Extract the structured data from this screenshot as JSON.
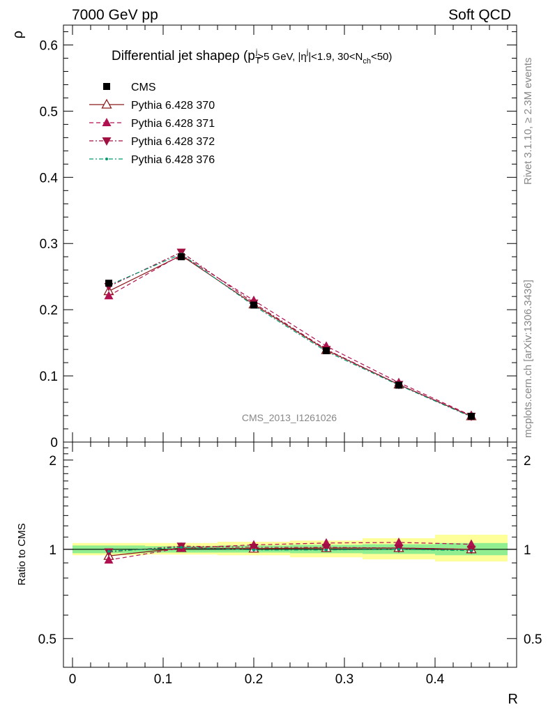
{
  "header": {
    "left": "7000 GeV pp",
    "right": "Soft QCD"
  },
  "side_labels": {
    "rivet": "Rivet 3.1.10, ≥ 2.3M events",
    "mcplots": "mcplots.cern.ch [arXiv:1306.3436]"
  },
  "watermark": "CMS_2013_I1261026",
  "colors": {
    "cms": "#000000",
    "p370": "#8b1a1a",
    "p371": "#b0104f",
    "p372": "#a01040",
    "p376": "#009a6e",
    "band_inner": "#90ee90",
    "band_outer": "#ffff99"
  },
  "chart_data": [
    {
      "type": "line",
      "title": "Differential jet shapeρ (p_T^j>5 GeV, |η^j|<1.9, 30<N_ch<50)",
      "title_parts": {
        "main": "Differential jet shapeρ (p",
        "sub1": "T",
        "sup1": "j",
        "mid1": ">5 GeV, |η",
        "sup2": "j",
        "mid2": "|<1.9, 30<N",
        "sub2": "ch",
        "end": "<50)"
      },
      "ylabel": "ρ",
      "xlim": [
        -0.01,
        0.49
      ],
      "ylim": [
        0,
        0.63
      ],
      "yticks": [
        0,
        0.1,
        0.2,
        0.3,
        0.4,
        0.5,
        0.6
      ],
      "ytick_labels": [
        "0",
        "0.1",
        "0.2",
        "0.3",
        "0.4",
        "0.5",
        "0.6"
      ],
      "legend_position": "top-left",
      "x": [
        0.04,
        0.12,
        0.2,
        0.28,
        0.36,
        0.44
      ],
      "series": [
        {
          "name": "CMS",
          "values": [
            0.24,
            0.28,
            0.207,
            0.138,
            0.086,
            0.039
          ],
          "style": "data"
        },
        {
          "name": "Pythia 6.428 370",
          "values": [
            0.228,
            0.282,
            0.208,
            0.139,
            0.087,
            0.039
          ],
          "style": "solid",
          "marker": "triangle-open"
        },
        {
          "name": "Pythia 6.428 371",
          "values": [
            0.221,
            0.283,
            0.214,
            0.145,
            0.09,
            0.04
          ],
          "style": "dashed",
          "marker": "triangle-up"
        },
        {
          "name": "Pythia 6.428 372",
          "values": [
            0.235,
            0.287,
            0.21,
            0.14,
            0.087,
            0.039
          ],
          "style": "dashdot",
          "marker": "triangle-down"
        },
        {
          "name": "Pythia 6.428 376",
          "values": [
            0.237,
            0.284,
            0.206,
            0.137,
            0.086,
            0.038
          ],
          "style": "dashdot-green",
          "marker": "dot"
        }
      ]
    },
    {
      "type": "line",
      "xlabel": "R",
      "ylabel": "Ratio to CMS",
      "xlim": [
        -0.01,
        0.49
      ],
      "ylim": [
        0.4,
        2.3
      ],
      "log_y": true,
      "yticks": [
        0.5,
        1,
        2
      ],
      "ytick_labels": [
        "0.5",
        "1",
        "2"
      ],
      "xticks": [
        0,
        0.1,
        0.2,
        0.3,
        0.4
      ],
      "xtick_labels": [
        "0",
        "0.1",
        "0.2",
        "0.3",
        "0.4"
      ],
      "x": [
        0.04,
        0.12,
        0.2,
        0.28,
        0.36,
        0.44
      ],
      "bins": [
        [
          0.0,
          0.08
        ],
        [
          0.08,
          0.16
        ],
        [
          0.16,
          0.24
        ],
        [
          0.24,
          0.32
        ],
        [
          0.32,
          0.4
        ],
        [
          0.4,
          0.48
        ]
      ],
      "band_inner": [
        [
          0.97,
          1.03
        ],
        [
          0.975,
          1.025
        ],
        [
          0.975,
          1.03
        ],
        [
          0.97,
          1.035
        ],
        [
          0.965,
          1.04
        ],
        [
          0.955,
          1.05
        ]
      ],
      "band_outer": [
        [
          0.955,
          1.05
        ],
        [
          0.96,
          1.05
        ],
        [
          0.955,
          1.06
        ],
        [
          0.94,
          1.07
        ],
        [
          0.925,
          1.09
        ],
        [
          0.91,
          1.12
        ]
      ],
      "series": [
        {
          "name": "Pythia 6.428 370",
          "values": [
            0.95,
            1.01,
            1.005,
            1.01,
            1.01,
            1.0
          ]
        },
        {
          "name": "Pythia 6.428 371",
          "values": [
            0.92,
            1.01,
            1.035,
            1.05,
            1.055,
            1.04
          ]
        },
        {
          "name": "Pythia 6.428 372",
          "values": [
            0.98,
            1.025,
            1.015,
            1.015,
            1.01,
            1.0
          ]
        },
        {
          "name": "Pythia 6.428 376",
          "values": [
            0.985,
            1.015,
            0.995,
            0.995,
            1.0,
            0.99
          ]
        }
      ]
    }
  ]
}
